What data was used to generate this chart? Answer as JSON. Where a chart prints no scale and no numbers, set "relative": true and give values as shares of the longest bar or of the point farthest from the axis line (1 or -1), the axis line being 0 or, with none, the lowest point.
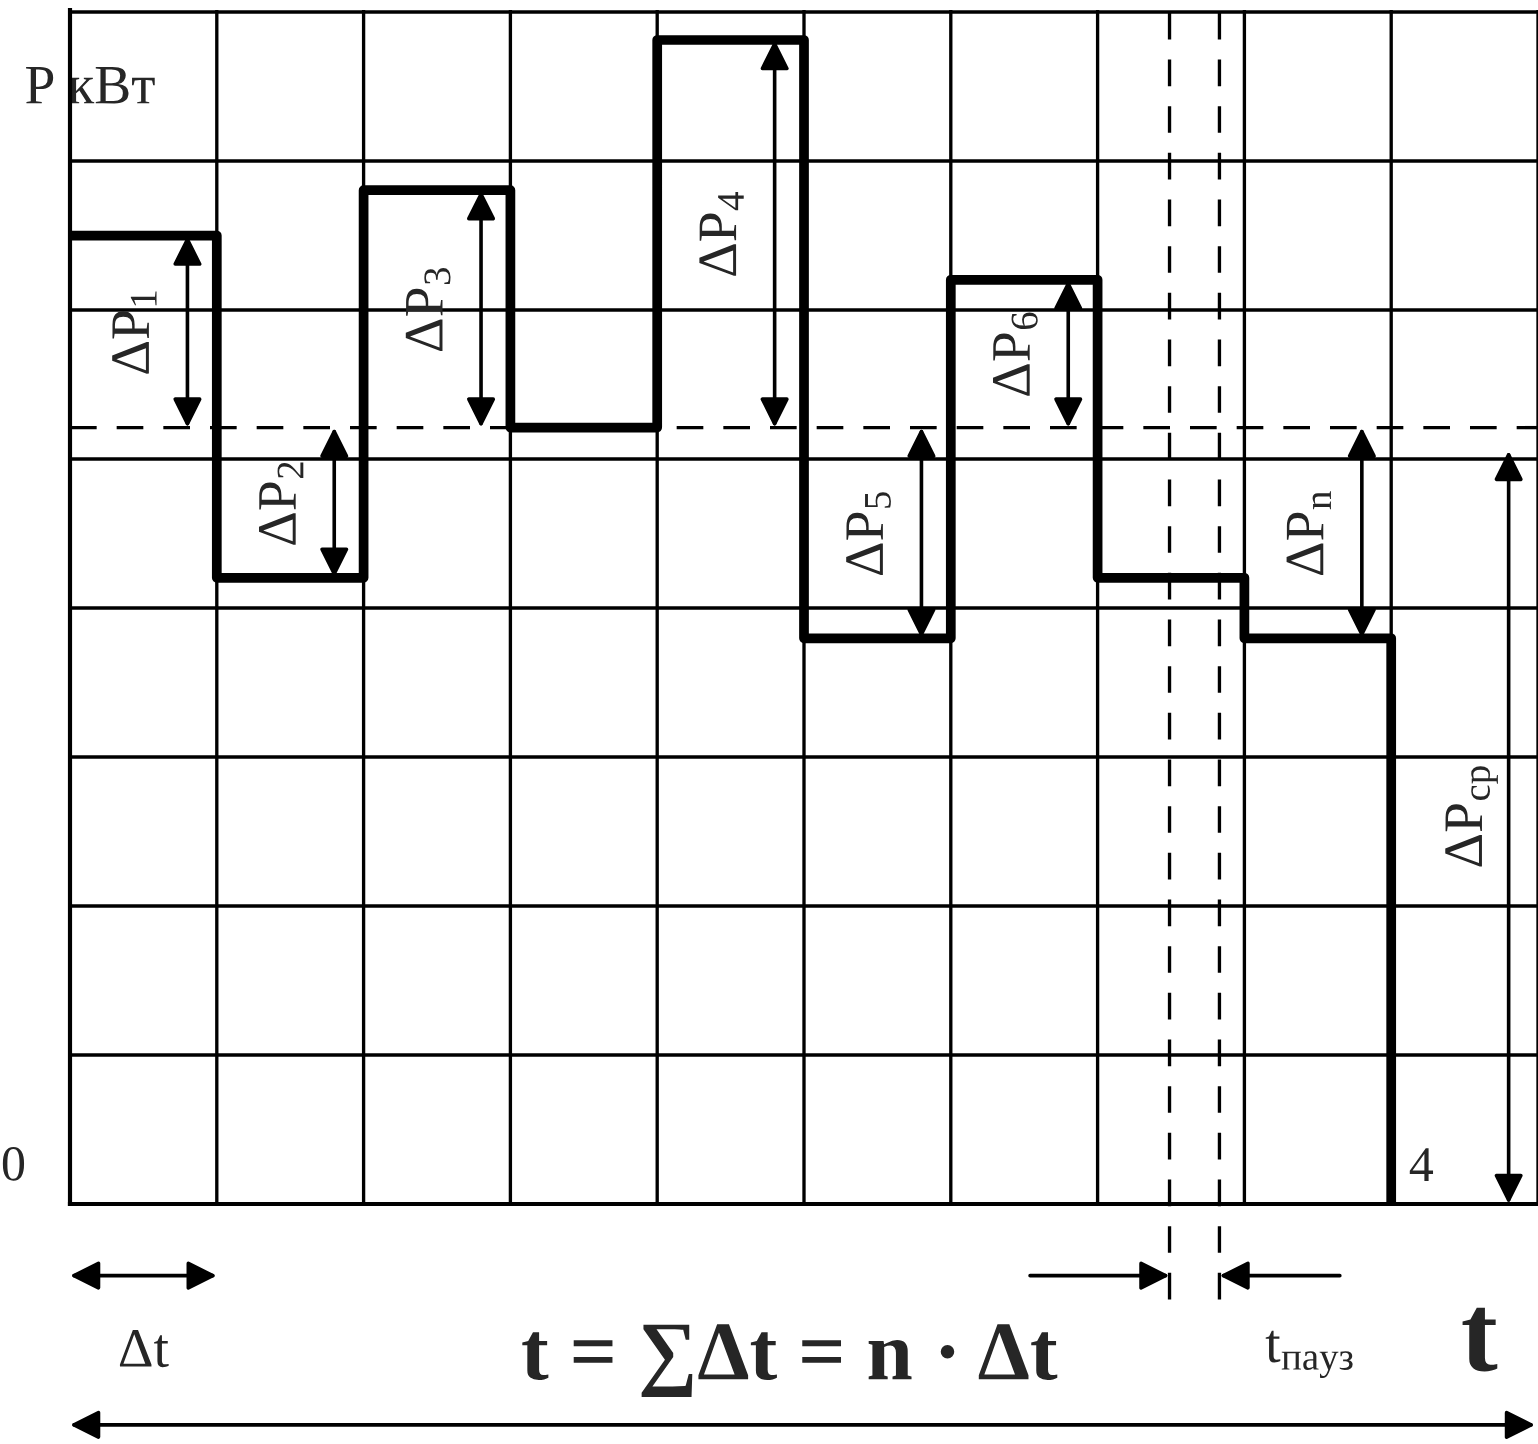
{
  "chart_data": {
    "type": "step",
    "relative": true,
    "categories": [
      null,
      null,
      null,
      null,
      null,
      null,
      null,
      null,
      null,
      null
    ],
    "values": [
      0.832,
      0.538,
      0.871,
      0.667,
      1,
      0.486,
      0.794,
      0.538,
      0.486,
      0
    ],
    "color": "#000000",
    "grid": true,
    "xlabel": "t",
    "ylabel": "P кВт",
    "ref_lines": [
      {
        "axis": "y",
        "value": 0.667,
        "color": "#000000",
        "line_style": "dashed"
      }
    ],
    "annotations": [
      "0",
      "ΔP$_{1}$",
      "ΔP$_{2}$",
      "ΔP$_{3}$",
      "ΔP$_{4}$",
      "ΔP$_{5}$",
      "ΔP$_{6}$",
      "ΔP$_{n}$",
      "ΔP$_{ср}$",
      "4",
      "Δt",
      "t = ∑Δt = n · Δt",
      "t$_{пауз}$"
    ]
  }
}
